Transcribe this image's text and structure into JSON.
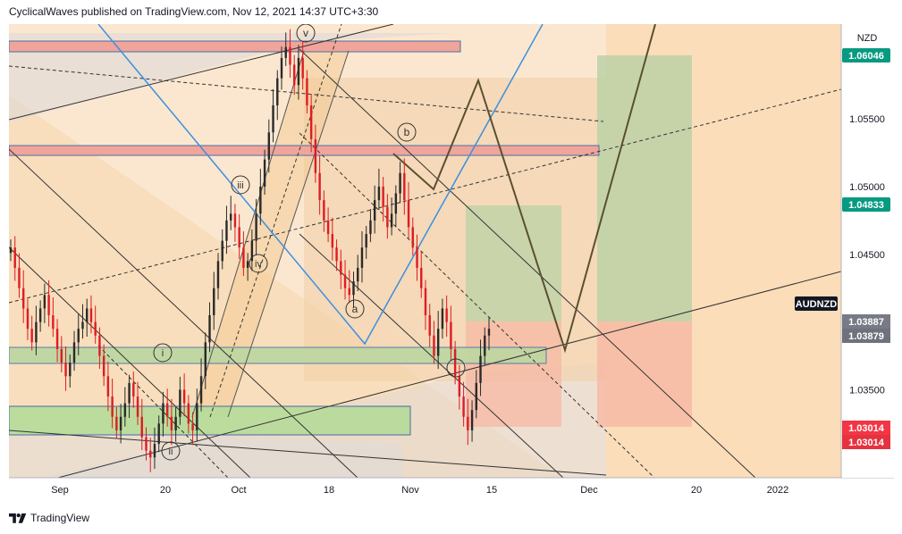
{
  "header": {
    "text": "CyclicalWaves published on TradingView.com, Nov 12, 2021 14:37 UTC+3:30"
  },
  "footer": {
    "brand": "TradingView",
    "logo_icon": "tradingview-logo-icon"
  },
  "chart_data": {
    "type": "candlestick",
    "symbol": "AUDNZD",
    "currency": "NZD",
    "ylim": [
      1.0285,
      1.062
    ],
    "y_ticks": [
      1.035,
      1.04,
      1.045,
      1.05,
      1.055
    ],
    "x_ticks": [
      "Sep",
      "20",
      "Oct",
      "18",
      "Nov",
      "15",
      "Dec",
      "20",
      "2022"
    ],
    "price_labels": [
      {
        "value": "1.06046",
        "color": "#089981"
      },
      {
        "value": "1.04833",
        "color": "#089981"
      },
      {
        "value": "AUDNZD",
        "color": "#131722"
      },
      {
        "value": "1.03887",
        "color": "#787b86"
      },
      {
        "value": "1.03879",
        "color": "#787b86"
      },
      {
        "value": "1.03014",
        "color": "#f23645"
      },
      {
        "value": "1.03014",
        "color": "#f23645"
      }
    ],
    "wave_labels": [
      "v",
      "iii",
      "iv",
      "i",
      "ii",
      "b",
      "a",
      "c"
    ],
    "closes": [
      1.0455,
      1.044,
      1.0425,
      1.041,
      1.0395,
      1.0385,
      1.04,
      1.041,
      1.042,
      1.0405,
      1.0395,
      1.038,
      1.037,
      1.036,
      1.037,
      1.0385,
      1.0395,
      1.04,
      1.041,
      1.04,
      1.039,
      1.0375,
      1.036,
      1.0345,
      1.033,
      1.032,
      1.033,
      1.034,
      1.0355,
      1.0345,
      1.033,
      1.0315,
      1.0305,
      1.03,
      1.031,
      1.0325,
      1.034,
      1.033,
      1.032,
      1.033,
      1.035,
      1.034,
      1.0325,
      1.032,
      1.034,
      1.036,
      1.0385,
      1.0405,
      1.0425,
      1.0445,
      1.046,
      1.0475,
      1.048,
      1.047,
      1.0455,
      1.044,
      1.0445,
      1.046,
      1.048,
      1.05,
      1.052,
      1.054,
      1.056,
      1.058,
      1.0595,
      1.0603,
      1.059,
      1.0575,
      1.0595,
      1.058,
      1.056,
      1.0535,
      1.051,
      1.049,
      1.0475,
      1.0465,
      1.0455,
      1.0445,
      1.0435,
      1.0425,
      1.042,
      1.043,
      1.044,
      1.0455,
      1.0465,
      1.0475,
      1.049,
      1.05,
      1.0485,
      1.047,
      1.048,
      1.0495,
      1.051,
      1.049,
      1.047,
      1.0455,
      1.044,
      1.0425,
      1.0405,
      1.039,
      1.0375,
      1.0395,
      1.041,
      1.04,
      1.038,
      1.036,
      1.0345,
      1.033,
      1.032,
      1.0335,
      1.0355,
      1.0375,
      1.039,
      1.0395
    ]
  }
}
